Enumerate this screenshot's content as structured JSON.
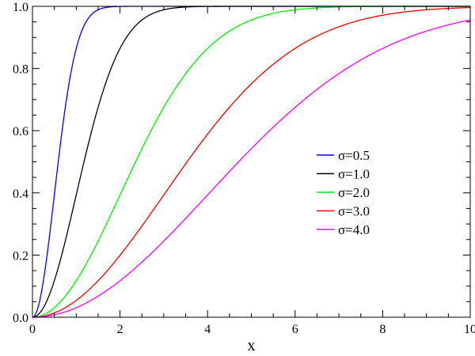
{
  "chart_data": {
    "type": "line",
    "xlabel": "x",
    "ylabel": "",
    "title": "",
    "xlim": [
      0,
      10
    ],
    "ylim": [
      0,
      1
    ],
    "grid": false,
    "legend_position": "center-right",
    "x_ticks": [
      0,
      2,
      4,
      6,
      8,
      10
    ],
    "x_tick_labels": [
      "0",
      "2",
      "4",
      "6",
      "8",
      "10"
    ],
    "y_ticks": [
      0,
      0.2,
      0.4,
      0.6,
      0.8,
      1.0
    ],
    "y_tick_labels": [
      "0.0",
      "0.2",
      "0.4",
      "0.6",
      "0.8",
      "1.0"
    ],
    "x": [
      0,
      0.5,
      1,
      1.5,
      2,
      2.5,
      3,
      4,
      5,
      6,
      7,
      8,
      9,
      10
    ],
    "series": [
      {
        "name": "σ=0.5",
        "color": "#0000ff",
        "sigma": 0.5,
        "values": [
          0,
          0.39,
          0.86,
          0.99,
          1.0,
          1.0,
          1.0,
          1.0,
          1.0,
          1.0,
          1.0,
          1.0,
          1.0,
          1.0
        ]
      },
      {
        "name": "σ=1.0",
        "color": "#000000",
        "sigma": 1.0,
        "values": [
          0,
          0.12,
          0.39,
          0.68,
          0.86,
          0.96,
          0.99,
          1.0,
          1.0,
          1.0,
          1.0,
          1.0,
          1.0,
          1.0
        ]
      },
      {
        "name": "σ=2.0",
        "color": "#00ee00",
        "sigma": 2.0,
        "values": [
          0,
          0.03,
          0.12,
          0.25,
          0.39,
          0.54,
          0.68,
          0.86,
          0.96,
          0.99,
          1.0,
          1.0,
          1.0,
          1.0
        ]
      },
      {
        "name": "σ=3.0",
        "color": "#ee0000",
        "sigma": 3.0,
        "values": [
          0,
          0.01,
          0.05,
          0.12,
          0.2,
          0.29,
          0.39,
          0.59,
          0.75,
          0.86,
          0.93,
          0.97,
          0.99,
          1.0
        ]
      },
      {
        "name": "σ=4.0",
        "color": "#ff00ff",
        "sigma": 4.0,
        "values": [
          0,
          0.01,
          0.03,
          0.07,
          0.12,
          0.18,
          0.25,
          0.39,
          0.54,
          0.68,
          0.78,
          0.86,
          0.92,
          0.96
        ]
      }
    ]
  }
}
